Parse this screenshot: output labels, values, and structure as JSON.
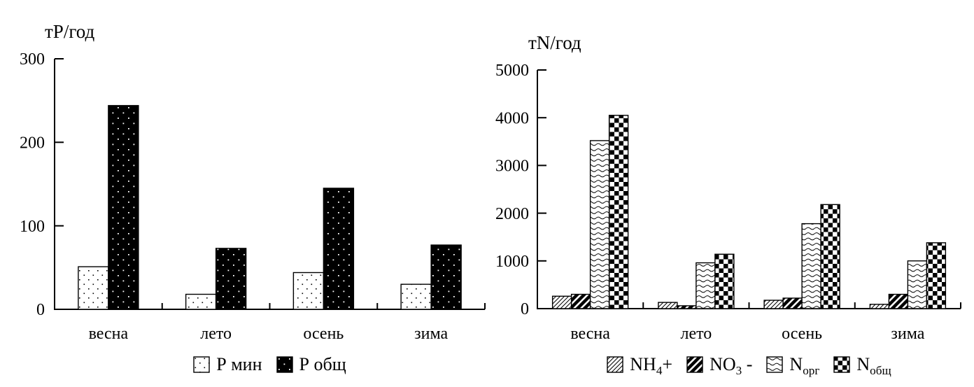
{
  "figure": {
    "background": "#ffffff",
    "ink": "#000000"
  },
  "chart_data": [
    {
      "id": "phosphorus-chart",
      "type": "bar",
      "title": "тР/год",
      "categories": [
        "весна",
        "лето",
        "осень",
        "зима"
      ],
      "series": [
        {
          "name": "Р мин",
          "label_segments": [
            {
              "text": "Р мин"
            }
          ],
          "pattern": "dots-on-white",
          "values": [
            51,
            18,
            44,
            30
          ]
        },
        {
          "name": "Р общ",
          "label_segments": [
            {
              "text": "Р общ"
            }
          ],
          "pattern": "white-dots-on-black",
          "values": [
            244,
            73,
            145,
            77
          ]
        }
      ],
      "ylim": [
        0,
        300
      ],
      "yticks": [
        0,
        100,
        200,
        300
      ],
      "grid": false,
      "legend_position": "bottom"
    },
    {
      "id": "nitrogen-chart",
      "type": "bar",
      "title": "тN/год",
      "categories": [
        "весна",
        "лето",
        "осень",
        "зима"
      ],
      "series": [
        {
          "name": "NH4+",
          "label_segments": [
            {
              "text": "NH"
            },
            {
              "text": "4",
              "sub": true
            },
            {
              "text": "+"
            }
          ],
          "pattern": "hatch-thin",
          "values": [
            260,
            130,
            175,
            90
          ]
        },
        {
          "name": "NO3 -",
          "label_segments": [
            {
              "text": "NO"
            },
            {
              "text": "3",
              "sub": true
            },
            {
              "text": " -"
            }
          ],
          "pattern": "hatch-bold",
          "values": [
            300,
            60,
            220,
            300
          ]
        },
        {
          "name": "Nорг",
          "label_segments": [
            {
              "text": "N"
            },
            {
              "text": "орг",
              "sub": true
            }
          ],
          "pattern": "waves",
          "values": [
            3520,
            960,
            1780,
            1000
          ]
        },
        {
          "name": "Nобщ",
          "label_segments": [
            {
              "text": "N"
            },
            {
              "text": "общ",
              "sub": true
            }
          ],
          "pattern": "checker",
          "values": [
            4050,
            1140,
            2180,
            1380
          ]
        }
      ],
      "ylim": [
        0,
        5000
      ],
      "yticks": [
        0,
        1000,
        2000,
        3000,
        4000,
        5000
      ],
      "grid": false,
      "legend_position": "bottom"
    }
  ]
}
